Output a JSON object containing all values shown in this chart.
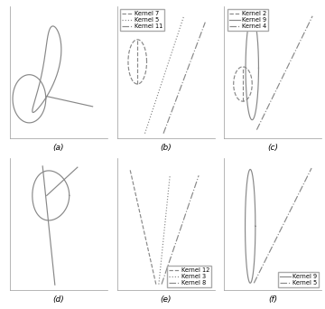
{
  "fig_labels": [
    "(a)",
    "(b)",
    "(c)",
    "(d)",
    "(e)",
    "(f)"
  ],
  "legend_b_labels": [
    "Kernel 7",
    "Kernel 5",
    "Kernel 11"
  ],
  "legend_b_styles": [
    "--",
    ":",
    "-."
  ],
  "legend_c_labels": [
    "Kernel 2",
    "Kernel 9",
    "Kernel 4"
  ],
  "legend_c_styles": [
    "--",
    "-",
    "-."
  ],
  "legend_e_labels": [
    "Kernel 12",
    "Kernel 3",
    "Kernel 8"
  ],
  "legend_e_styles": [
    "--",
    ":",
    "-."
  ],
  "legend_f_labels": [
    "Kernel 9",
    "Kernel 5"
  ],
  "legend_f_styles": [
    "-",
    "-."
  ],
  "line_color": "#888888",
  "label_fontsize": 6.5
}
